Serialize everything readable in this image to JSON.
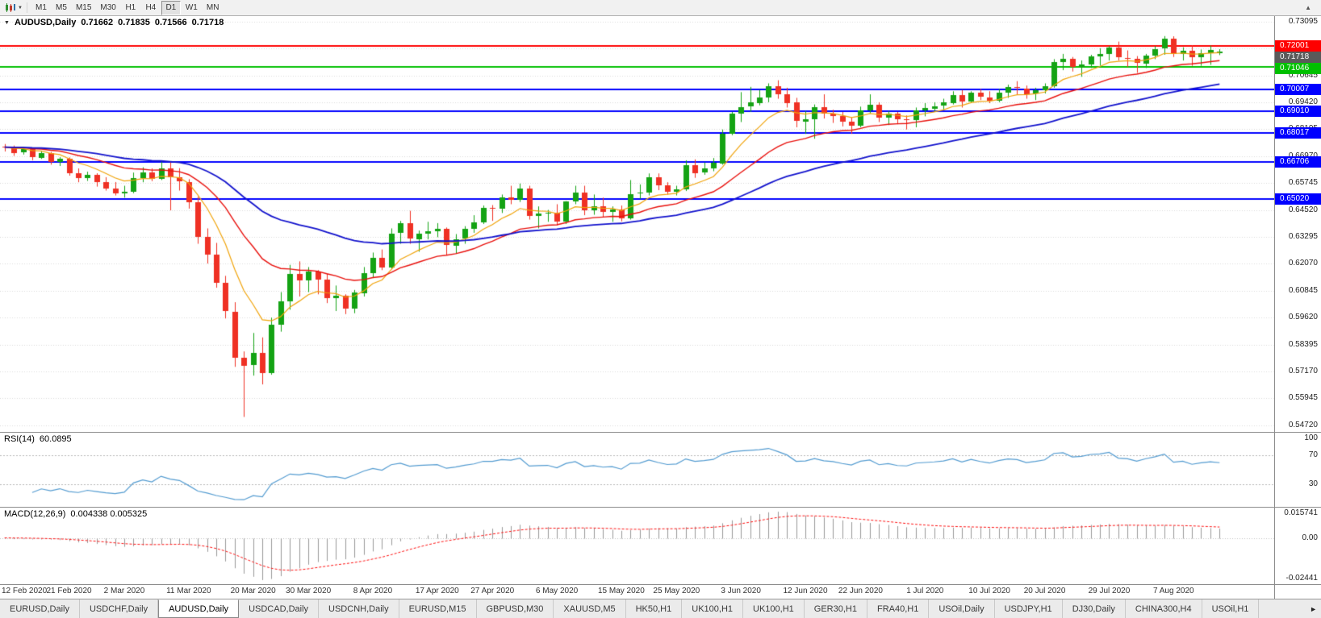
{
  "toolbar": {
    "dropdown_glyph": "▼",
    "scroll_up_glyph": "▲",
    "timeframes": [
      "M1",
      "M5",
      "M15",
      "M30",
      "H1",
      "H4",
      "D1",
      "W1",
      "MN"
    ],
    "active_timeframe": "D1"
  },
  "chart": {
    "symbol": "AUDUSD,Daily",
    "marker_glyph": "▼",
    "ohlc": {
      "open": "0.71662",
      "high": "0.71835",
      "low": "0.71566",
      "close": "0.71718"
    },
    "current_price": "0.71718",
    "colors": {
      "bull": "#14a314",
      "bear": "#ef3124",
      "grid": "#d9d9d9",
      "current_badge": "#5a5a5a",
      "background": "#ffffff"
    },
    "y_axis": {
      "tick_step": 0.01225,
      "ticks": [
        {
          "value": 0.73095,
          "label": "0.73095"
        },
        {
          "value": 0.7187,
          "label": "0.71870"
        },
        {
          "value": 0.70645,
          "label": "0.70645"
        },
        {
          "value": 0.6942,
          "label": "0.69420"
        },
        {
          "value": 0.68195,
          "label": "0.68195"
        },
        {
          "value": 0.6697,
          "label": "0.66970"
        },
        {
          "value": 0.65745,
          "label": "0.65745"
        },
        {
          "value": 0.6452,
          "label": "0.64520"
        },
        {
          "value": 0.63295,
          "label": "0.63295"
        },
        {
          "value": 0.6207,
          "label": "0.62070"
        },
        {
          "value": 0.60845,
          "label": "0.60845"
        },
        {
          "value": 0.5962,
          "label": "0.59620"
        },
        {
          "value": 0.58395,
          "label": "0.58395"
        },
        {
          "value": 0.5717,
          "label": "0.57170"
        },
        {
          "value": 0.55945,
          "label": "0.55945"
        },
        {
          "value": 0.5472,
          "label": "0.54720"
        }
      ]
    },
    "hlines": [
      {
        "price": 0.72001,
        "label": "0.72001",
        "color": "#fe0000"
      },
      {
        "price": 0.71046,
        "label": "0.71046",
        "color": "#00c000"
      },
      {
        "price": 0.70007,
        "label": "0.70007",
        "color": "#0000ff"
      },
      {
        "price": 0.6901,
        "label": "0.69010",
        "color": "#0000ff"
      },
      {
        "price": 0.68017,
        "label": "0.68017",
        "color": "#0000ff"
      },
      {
        "price": 0.66706,
        "label": "0.66706",
        "color": "#0000ff"
      },
      {
        "price": 0.6502,
        "label": "0.65020",
        "color": "#0000ff"
      }
    ]
  },
  "chart_data": {
    "type": "candlestick",
    "symbol": "AUDUSD",
    "period": "Daily",
    "price_range": {
      "max": 0.7334,
      "min": 0.5442
    },
    "moving_averages": [
      {
        "period": 8,
        "color": "#f0a30a",
        "width": 1.2
      },
      {
        "period": 20,
        "color": "#e8100c",
        "width": 1.4
      },
      {
        "period": 45,
        "color": "#1212cc",
        "width": 1.8
      }
    ],
    "x_labels": [
      {
        "index": 0,
        "label": "12 Feb 2020"
      },
      {
        "index": 7,
        "label": "21 Feb 2020"
      },
      {
        "index": 13,
        "label": "2 Mar 2020"
      },
      {
        "index": 20,
        "label": "11 Mar 2020"
      },
      {
        "index": 27,
        "label": "20 Mar 2020"
      },
      {
        "index": 33,
        "label": "30 Mar 2020"
      },
      {
        "index": 40,
        "label": "8 Apr 2020"
      },
      {
        "index": 47,
        "label": "17 Apr 2020"
      },
      {
        "index": 53,
        "label": "27 Apr 2020"
      },
      {
        "index": 60,
        "label": "6 May 2020"
      },
      {
        "index": 67,
        "label": "15 May 2020"
      },
      {
        "index": 73,
        "label": "25 May 2020"
      },
      {
        "index": 80,
        "label": "3 Jun 2020"
      },
      {
        "index": 87,
        "label": "12 Jun 2020"
      },
      {
        "index": 93,
        "label": "22 Jun 2020"
      },
      {
        "index": 100,
        "label": "1 Jul 2020"
      },
      {
        "index": 107,
        "label": "10 Jul 2020"
      },
      {
        "index": 113,
        "label": "20 Jul 2020"
      },
      {
        "index": 120,
        "label": "29 Jul 2020"
      },
      {
        "index": 127,
        "label": "7 Aug 2020"
      }
    ],
    "candles": [
      [
        0.674,
        0.6752,
        0.6718,
        0.6738
      ],
      [
        0.6738,
        0.6745,
        0.6698,
        0.6713
      ],
      [
        0.6713,
        0.6736,
        0.6704,
        0.6728
      ],
      [
        0.6728,
        0.6732,
        0.6678,
        0.669
      ],
      [
        0.669,
        0.6721,
        0.6684,
        0.6712
      ],
      [
        0.6712,
        0.6716,
        0.6658,
        0.6672
      ],
      [
        0.6672,
        0.6692,
        0.6652,
        0.6685
      ],
      [
        0.6685,
        0.6691,
        0.6608,
        0.662
      ],
      [
        0.662,
        0.6641,
        0.6578,
        0.6598
      ],
      [
        0.6598,
        0.6626,
        0.6584,
        0.6612
      ],
      [
        0.6612,
        0.6619,
        0.6558,
        0.658
      ],
      [
        0.658,
        0.6601,
        0.654,
        0.655
      ],
      [
        0.655,
        0.6579,
        0.6518,
        0.6527
      ],
      [
        0.6527,
        0.6562,
        0.6508,
        0.6536
      ],
      [
        0.6536,
        0.6622,
        0.6528,
        0.6598
      ],
      [
        0.6598,
        0.6646,
        0.6578,
        0.6622
      ],
      [
        0.6622,
        0.6641,
        0.6583,
        0.6592
      ],
      [
        0.6592,
        0.6672,
        0.6588,
        0.664
      ],
      [
        0.664,
        0.667,
        0.645,
        0.66
      ],
      [
        0.66,
        0.6642,
        0.654,
        0.658
      ],
      [
        0.658,
        0.6592,
        0.6458,
        0.6487
      ],
      [
        0.6487,
        0.6512,
        0.6298,
        0.633
      ],
      [
        0.633,
        0.6368,
        0.6208,
        0.625
      ],
      [
        0.625,
        0.6302,
        0.6098,
        0.612
      ],
      [
        0.612,
        0.6152,
        0.5958,
        0.599
      ],
      [
        0.599,
        0.6032,
        0.5738,
        0.578
      ],
      [
        0.578,
        0.5808,
        0.551,
        0.5745
      ],
      [
        0.5745,
        0.5892,
        0.5698,
        0.58
      ],
      [
        0.58,
        0.5872,
        0.5658,
        0.571
      ],
      [
        0.571,
        0.5962,
        0.5702,
        0.593
      ],
      [
        0.593,
        0.6078,
        0.5898,
        0.6035
      ],
      [
        0.6035,
        0.6202,
        0.5998,
        0.616
      ],
      [
        0.616,
        0.6218,
        0.6058,
        0.613
      ],
      [
        0.613,
        0.6192,
        0.6078,
        0.617
      ],
      [
        0.617,
        0.6178,
        0.6068,
        0.6135
      ],
      [
        0.6135,
        0.6162,
        0.6028,
        0.605
      ],
      [
        0.605,
        0.6108,
        0.5992,
        0.606
      ],
      [
        0.606,
        0.6068,
        0.5978,
        0.6
      ],
      [
        0.6,
        0.6088,
        0.5982,
        0.6075
      ],
      [
        0.6075,
        0.6192,
        0.6058,
        0.6165
      ],
      [
        0.6165,
        0.6258,
        0.6142,
        0.6235
      ],
      [
        0.6235,
        0.6272,
        0.6178,
        0.619
      ],
      [
        0.619,
        0.6368,
        0.6182,
        0.6345
      ],
      [
        0.6345,
        0.6402,
        0.6298,
        0.639
      ],
      [
        0.639,
        0.6448,
        0.6298,
        0.632
      ],
      [
        0.632,
        0.6358,
        0.6262,
        0.6345
      ],
      [
        0.6345,
        0.6398,
        0.6318,
        0.6355
      ],
      [
        0.6355,
        0.6392,
        0.6328,
        0.6365
      ],
      [
        0.6365,
        0.6372,
        0.6248,
        0.629
      ],
      [
        0.629,
        0.6342,
        0.6252,
        0.632
      ],
      [
        0.632,
        0.6378,
        0.6298,
        0.6365
      ],
      [
        0.6365,
        0.6428,
        0.6348,
        0.6395
      ],
      [
        0.6395,
        0.6472,
        0.6388,
        0.6462
      ],
      [
        0.6462,
        0.6474,
        0.6402,
        0.646
      ],
      [
        0.646,
        0.6522,
        0.6438,
        0.651
      ],
      [
        0.651,
        0.6562,
        0.6478,
        0.65
      ],
      [
        0.65,
        0.6572,
        0.6488,
        0.655
      ],
      [
        0.655,
        0.6562,
        0.6408,
        0.6425
      ],
      [
        0.6425,
        0.6468,
        0.6368,
        0.6435
      ],
      [
        0.6435,
        0.6452,
        0.6398,
        0.644
      ],
      [
        0.644,
        0.6478,
        0.6382,
        0.64
      ],
      [
        0.64,
        0.6492,
        0.6388,
        0.649
      ],
      [
        0.649,
        0.6562,
        0.6478,
        0.653
      ],
      [
        0.653,
        0.6562,
        0.6428,
        0.645
      ],
      [
        0.645,
        0.6522,
        0.643,
        0.647
      ],
      [
        0.647,
        0.6508,
        0.6418,
        0.6445
      ],
      [
        0.6445,
        0.6468,
        0.6398,
        0.6455
      ],
      [
        0.6455,
        0.6472,
        0.64,
        0.6415
      ],
      [
        0.6415,
        0.6588,
        0.6408,
        0.6525
      ],
      [
        0.6525,
        0.6568,
        0.6502,
        0.653
      ],
      [
        0.653,
        0.6618,
        0.6518,
        0.66
      ],
      [
        0.66,
        0.6618,
        0.6542,
        0.6565
      ],
      [
        0.6565,
        0.6578,
        0.6522,
        0.6535
      ],
      [
        0.6535,
        0.6562,
        0.6518,
        0.6545
      ],
      [
        0.6545,
        0.6678,
        0.6538,
        0.6655
      ],
      [
        0.6655,
        0.6682,
        0.6598,
        0.662
      ],
      [
        0.662,
        0.6668,
        0.6612,
        0.664
      ],
      [
        0.664,
        0.6688,
        0.6628,
        0.6665
      ],
      [
        0.6665,
        0.6818,
        0.6658,
        0.68
      ],
      [
        0.68,
        0.6898,
        0.6792,
        0.689
      ],
      [
        0.689,
        0.6988,
        0.6852,
        0.692
      ],
      [
        0.692,
        0.7012,
        0.6898,
        0.694
      ],
      [
        0.694,
        0.6998,
        0.6928,
        0.6965
      ],
      [
        0.6965,
        0.7028,
        0.6942,
        0.7015
      ],
      [
        0.7015,
        0.7042,
        0.6958,
        0.698
      ],
      [
        0.698,
        0.7008,
        0.6918,
        0.694
      ],
      [
        0.694,
        0.6962,
        0.6828,
        0.6855
      ],
      [
        0.6855,
        0.6902,
        0.6798,
        0.6865
      ],
      [
        0.6865,
        0.6932,
        0.6776,
        0.692
      ],
      [
        0.692,
        0.6978,
        0.6868,
        0.689
      ],
      [
        0.689,
        0.6908,
        0.6848,
        0.688
      ],
      [
        0.688,
        0.6898,
        0.6832,
        0.6855
      ],
      [
        0.6855,
        0.6872,
        0.6798,
        0.6835
      ],
      [
        0.6835,
        0.6922,
        0.6828,
        0.6905
      ],
      [
        0.6905,
        0.6978,
        0.6892,
        0.693
      ],
      [
        0.693,
        0.6942,
        0.6852,
        0.687
      ],
      [
        0.687,
        0.6902,
        0.6838,
        0.689
      ],
      [
        0.689,
        0.6898,
        0.6842,
        0.6865
      ],
      [
        0.6865,
        0.6882,
        0.6818,
        0.686
      ],
      [
        0.686,
        0.6918,
        0.6828,
        0.6905
      ],
      [
        0.6905,
        0.6938,
        0.6878,
        0.6915
      ],
      [
        0.6915,
        0.6942,
        0.6898,
        0.6925
      ],
      [
        0.6925,
        0.6958,
        0.6908,
        0.694
      ],
      [
        0.694,
        0.6992,
        0.6932,
        0.6975
      ],
      [
        0.6975,
        0.6998,
        0.6918,
        0.6945
      ],
      [
        0.6945,
        0.6992,
        0.6938,
        0.6985
      ],
      [
        0.6985,
        0.7002,
        0.6952,
        0.6965
      ],
      [
        0.6965,
        0.6992,
        0.6938,
        0.695
      ],
      [
        0.695,
        0.7002,
        0.6942,
        0.6985
      ],
      [
        0.6985,
        0.7022,
        0.6962,
        0.701
      ],
      [
        0.701,
        0.7038,
        0.6978,
        0.7005
      ],
      [
        0.7005,
        0.7018,
        0.6958,
        0.698
      ],
      [
        0.698,
        0.7008,
        0.6952,
        0.6995
      ],
      [
        0.6995,
        0.7028,
        0.6982,
        0.7015
      ],
      [
        0.7015,
        0.7138,
        0.7008,
        0.7125
      ],
      [
        0.7125,
        0.7162,
        0.7088,
        0.714
      ],
      [
        0.714,
        0.7148,
        0.7082,
        0.7105
      ],
      [
        0.7105,
        0.7132,
        0.7058,
        0.7115
      ],
      [
        0.7115,
        0.7158,
        0.7098,
        0.715
      ],
      [
        0.715,
        0.7188,
        0.7108,
        0.716
      ],
      [
        0.716,
        0.7198,
        0.7132,
        0.719
      ],
      [
        0.719,
        0.7218,
        0.7132,
        0.7145
      ],
      [
        0.7145,
        0.7178,
        0.7102,
        0.714
      ],
      [
        0.714,
        0.7152,
        0.7076,
        0.712
      ],
      [
        0.712,
        0.7162,
        0.7098,
        0.7155
      ],
      [
        0.7155,
        0.7198,
        0.7138,
        0.7185
      ],
      [
        0.7185,
        0.7243,
        0.7158,
        0.723
      ],
      [
        0.723,
        0.7242,
        0.7148,
        0.716
      ],
      [
        0.716,
        0.7192,
        0.7132,
        0.7175
      ],
      [
        0.7175,
        0.7202,
        0.7108,
        0.7145
      ],
      [
        0.7145,
        0.7182,
        0.7108,
        0.7165
      ],
      [
        0.7165,
        0.72,
        0.7112,
        0.718
      ],
      [
        0.71662,
        0.71835,
        0.71566,
        0.71718
      ]
    ]
  },
  "rsi": {
    "label": "RSI(14)",
    "value": "60.0895",
    "period": 14,
    "color": "#539bd0",
    "axis_top_label": "100",
    "levels": [
      {
        "value": 70,
        "label": "70"
      },
      {
        "value": 30,
        "label": "30"
      }
    ],
    "range": {
      "max": 100,
      "min": 0
    }
  },
  "macd": {
    "label": "MACD(12,26,9)",
    "values": "0.004338 0.005325",
    "fast": 12,
    "slow": 26,
    "signal": 9,
    "histogram_color": "#999999",
    "signal_color": "#fe1010",
    "axis_labels": {
      "top": "0.015741",
      "zero": "0.00",
      "bottom": "-0.02441"
    }
  },
  "tabs": {
    "scroll_right_glyph": "►",
    "active": "AUDUSD,Daily",
    "items": [
      "EURUSD,Daily",
      "USDCHF,Daily",
      "AUDUSD,Daily",
      "USDCAD,Daily",
      "USDCNH,Daily",
      "EURUSD,M15",
      "GBPUSD,M30",
      "XAUUSD,M5",
      "HK50,H1",
      "UK100,H1",
      "UK100,H1",
      "GER30,H1",
      "FRA40,H1",
      "USOil,Daily",
      "USDJPY,H1",
      "DJ30,Daily",
      "CHINA300,H4",
      "USOil,H1"
    ]
  }
}
